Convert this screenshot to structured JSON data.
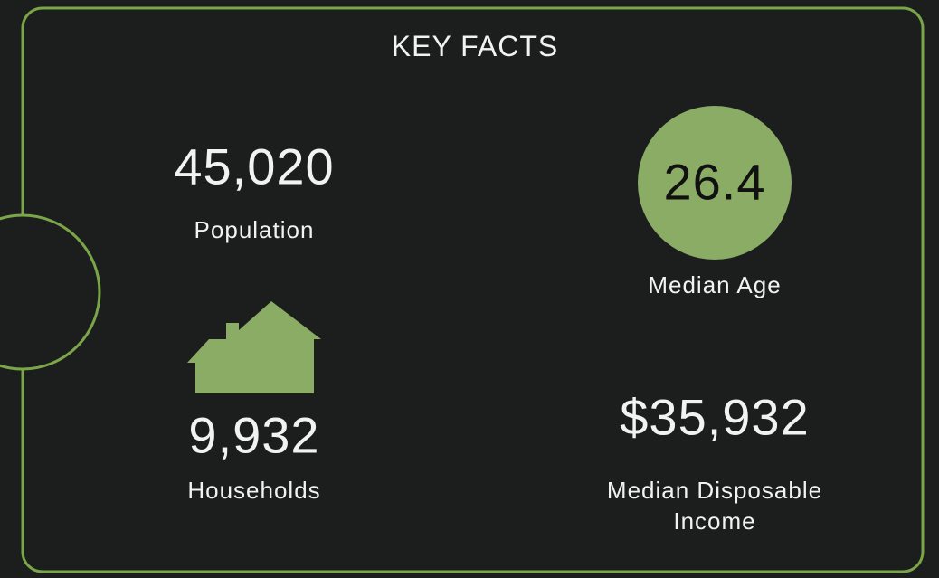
{
  "title": "KEY FACTS",
  "facts": [
    {
      "value": "45,020",
      "label": "Population"
    },
    {
      "value": "26.4",
      "label": "Median Age"
    },
    {
      "value": "9,932",
      "label": "Households"
    },
    {
      "value": "$35,932",
      "label": "Median Disposable Income"
    }
  ]
}
